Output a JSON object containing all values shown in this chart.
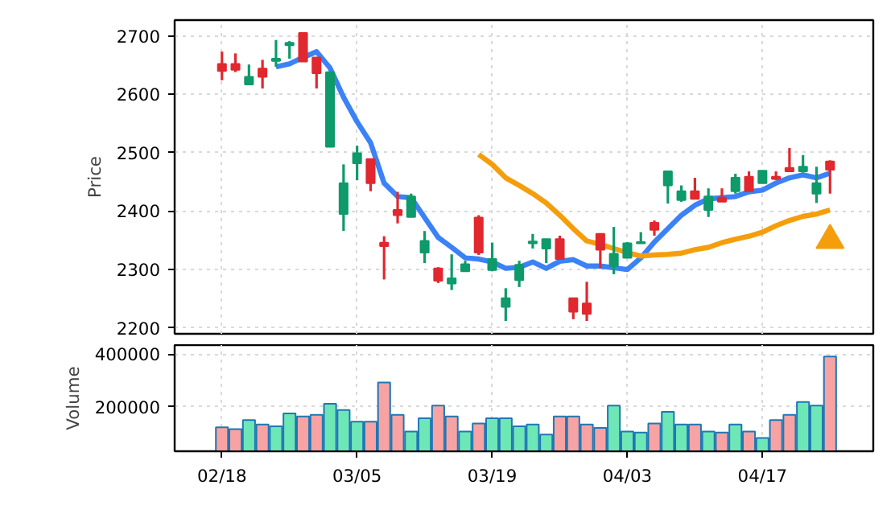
{
  "chart_data": [
    {
      "type": "candlestick",
      "ylabel": "Price",
      "tick_labels": "y",
      "grid": true,
      "categories": [
        null,
        null,
        null,
        null,
        null,
        null,
        null,
        null,
        null,
        null,
        null,
        null,
        null,
        null,
        null,
        null,
        null,
        null,
        null,
        null,
        null,
        null,
        null,
        null,
        null,
        null,
        null,
        null,
        null,
        null,
        null,
        null,
        null,
        null,
        null,
        null,
        null,
        null,
        null,
        null,
        null,
        null,
        null,
        null,
        null,
        null
      ],
      "ylim": [
        2190,
        2727
      ],
      "yticks": [
        2200,
        2300,
        2400,
        2500,
        2600,
        2700
      ],
      "ohlc": [
        [
          2640,
          2673,
          2624,
          2652
        ],
        [
          2642,
          2670,
          2638,
          2652
        ],
        [
          2630,
          2651,
          2617,
          2617
        ],
        [
          2630,
          2659,
          2610,
          2644
        ],
        [
          2661,
          2693,
          2647,
          2657
        ],
        [
          2688,
          2691,
          2661,
          2684
        ],
        [
          2656,
          2705,
          2656,
          2705
        ],
        [
          2636,
          2663,
          2610,
          2663
        ],
        [
          2638,
          2638,
          2510,
          2510
        ],
        [
          2448,
          2480,
          2366,
          2395
        ],
        [
          2499,
          2512,
          2453,
          2482
        ],
        [
          2448,
          2489,
          2434,
          2489
        ],
        [
          2340,
          2357,
          2283,
          2346
        ],
        [
          2393,
          2433,
          2379,
          2402
        ],
        [
          2425,
          2430,
          2390,
          2390
        ],
        [
          2349,
          2366,
          2311,
          2329
        ],
        [
          2281,
          2304,
          2277,
          2302
        ],
        [
          2285,
          2326,
          2265,
          2276
        ],
        [
          2309,
          2315,
          2297,
          2297
        ],
        [
          2329,
          2393,
          2325,
          2389
        ],
        [
          2318,
          2346,
          2297,
          2299
        ],
        [
          2251,
          2268,
          2212,
          2236
        ],
        [
          2308,
          2315,
          2270,
          2282
        ],
        [
          2348,
          2361,
          2336,
          2345
        ],
        [
          2352,
          2352,
          2311,
          2336
        ],
        [
          2318,
          2358,
          2318,
          2352
        ],
        [
          2228,
          2251,
          2215,
          2251
        ],
        [
          2224,
          2279,
          2212,
          2242
        ],
        [
          2334,
          2361,
          2302,
          2361
        ],
        [
          2327,
          2373,
          2292,
          2306
        ],
        [
          2345,
          2347,
          2320,
          2320
        ],
        [
          2347,
          2364,
          2345,
          2345
        ],
        [
          2368,
          2384,
          2358,
          2380
        ],
        [
          2468,
          2468,
          2413,
          2444
        ],
        [
          2434,
          2444,
          2416,
          2419
        ],
        [
          2421,
          2457,
          2421,
          2434
        ],
        [
          2425,
          2439,
          2390,
          2402
        ],
        [
          2416,
          2439,
          2416,
          2423
        ],
        [
          2457,
          2464,
          2430,
          2434
        ],
        [
          2434,
          2468,
          2434,
          2459
        ],
        [
          2469,
          2469,
          2448,
          2448
        ],
        [
          2455,
          2468,
          2453,
          2459
        ],
        [
          2468,
          2508,
          2468,
          2474
        ],
        [
          2476,
          2496,
          2466,
          2468
        ],
        [
          2448,
          2476,
          2414,
          2430
        ],
        [
          2471,
          2487,
          2430,
          2485
        ]
      ],
      "colors": [
        "#e0282e",
        "#e0282e",
        "#0e9a6a",
        "#e0282e",
        "#0e9a6a",
        "#0e9a6a",
        "#e0282e",
        "#e0282e",
        "#0e9a6a",
        "#0e9a6a",
        "#0e9a6a",
        "#e0282e",
        "#e0282e",
        "#e0282e",
        "#0e9a6a",
        "#0e9a6a",
        "#e0282e",
        "#0e9a6a",
        "#0e9a6a",
        "#e0282e",
        "#0e9a6a",
        "#0e9a6a",
        "#0e9a6a",
        "#0e9a6a",
        "#0e9a6a",
        "#e0282e",
        "#e0282e",
        "#e0282e",
        "#e0282e",
        "#0e9a6a",
        "#0e9a6a",
        "#0e9a6a",
        "#e0282e",
        "#0e9a6a",
        "#0e9a6a",
        "#e0282e",
        "#0e9a6a",
        "#e0282e",
        "#0e9a6a",
        "#e0282e",
        "#0e9a6a",
        "#e0282e",
        "#e0282e",
        "#0e9a6a",
        "#0e9a6a",
        "#e0282e"
      ],
      "series": [
        {
          "type": "line",
          "color": "#3b82f6",
          "values": [
            null,
            null,
            null,
            null,
            2647,
            2652,
            2663,
            2673,
            2645,
            2595,
            2553,
            2517,
            2448,
            2425,
            2423,
            2389,
            2355,
            2338,
            2320,
            2318,
            2313,
            2302,
            2304,
            2313,
            2302,
            2314,
            2317,
            2306,
            2306,
            2303,
            2300,
            2320,
            2347,
            2370,
            2393,
            2410,
            2421,
            2423,
            2425,
            2433,
            2436,
            2448,
            2457,
            2462,
            2457,
            2465
          ]
        },
        {
          "type": "line",
          "color": "#f59e0b",
          "values": [
            null,
            null,
            null,
            null,
            null,
            null,
            null,
            null,
            null,
            null,
            null,
            null,
            null,
            null,
            null,
            null,
            null,
            null,
            null,
            2497,
            2480,
            2457,
            2444,
            2430,
            2414,
            2393,
            2370,
            2349,
            2343,
            2336,
            2329,
            2323,
            2325,
            2326,
            2328,
            2334,
            2338,
            2346,
            2352,
            2357,
            2364,
            2375,
            2384,
            2391,
            2395,
            2402
          ]
        },
        {
          "type": "scatter",
          "marker": "triangle",
          "color": "#f59e0b",
          "values": [
            null,
            null,
            null,
            null,
            null,
            null,
            null,
            null,
            null,
            null,
            null,
            null,
            null,
            null,
            null,
            null,
            null,
            null,
            null,
            null,
            null,
            null,
            null,
            null,
            null,
            null,
            null,
            null,
            null,
            null,
            null,
            null,
            null,
            null,
            null,
            null,
            null,
            null,
            null,
            null,
            null,
            null,
            null,
            null,
            null,
            2350
          ]
        }
      ]
    },
    {
      "type": "bar",
      "ylabel": "Volume",
      "grid": true,
      "categories": [
        "02/18",
        null,
        null,
        null,
        null,
        null,
        null,
        null,
        null,
        null,
        "03/05",
        null,
        null,
        null,
        null,
        null,
        null,
        null,
        null,
        null,
        "03/19",
        null,
        null,
        null,
        null,
        null,
        null,
        null,
        null,
        null,
        "04/03",
        null,
        null,
        null,
        null,
        null,
        null,
        null,
        null,
        null,
        "04/17",
        null,
        null,
        null,
        null,
        null
      ],
      "ylim": [
        30000,
        435000
      ],
      "yticks": [
        200000,
        400000
      ],
      "values": [
        121000,
        114000,
        149000,
        132000,
        125000,
        174000,
        163000,
        169000,
        211000,
        187000,
        143000,
        143000,
        292000,
        169000,
        105000,
        156000,
        204000,
        163000,
        105000,
        136000,
        156000,
        156000,
        125000,
        132000,
        94000,
        163000,
        163000,
        132000,
        119000,
        204000,
        105000,
        101000,
        136000,
        180000,
        132000,
        132000,
        105000,
        101000,
        132000,
        105000,
        81000,
        149000,
        169000,
        218000,
        204000,
        391000
      ],
      "colors": [
        "#f7a3a3",
        "#f7a3a3",
        "#6ee7b7",
        "#f7a3a3",
        "#6ee7b7",
        "#6ee7b7",
        "#f7a3a3",
        "#f7a3a3",
        "#6ee7b7",
        "#6ee7b7",
        "#6ee7b7",
        "#f7a3a3",
        "#f7a3a3",
        "#f7a3a3",
        "#6ee7b7",
        "#6ee7b7",
        "#f7a3a3",
        "#f7a3a3",
        "#6ee7b7",
        "#f7a3a3",
        "#6ee7b7",
        "#6ee7b7",
        "#6ee7b7",
        "#6ee7b7",
        "#6ee7b7",
        "#f7a3a3",
        "#f7a3a3",
        "#f7a3a3",
        "#f7a3a3",
        "#6ee7b7",
        "#6ee7b7",
        "#6ee7b7",
        "#f7a3a3",
        "#6ee7b7",
        "#6ee7b7",
        "#f7a3a3",
        "#6ee7b7",
        "#f7a3a3",
        "#6ee7b7",
        "#f7a3a3",
        "#6ee7b7",
        "#f7a3a3",
        "#f7a3a3",
        "#6ee7b7",
        "#6ee7b7",
        "#f7a3a3"
      ]
    }
  ]
}
